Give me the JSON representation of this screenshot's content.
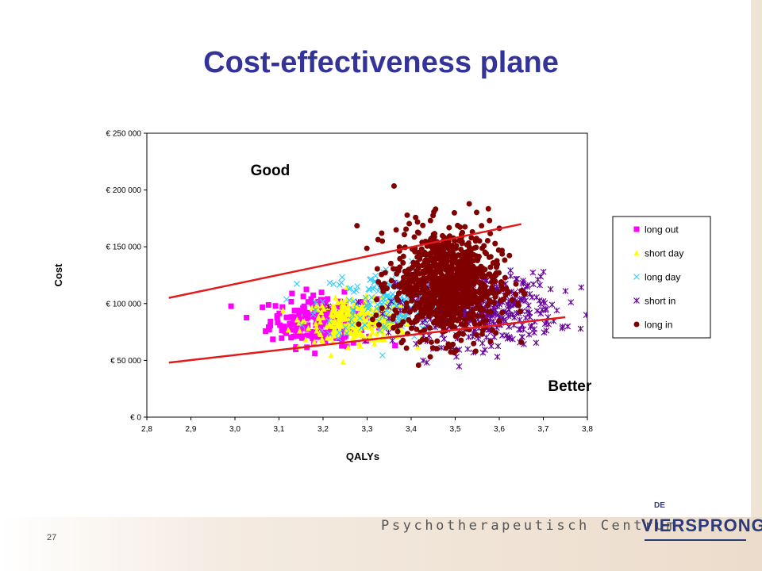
{
  "slide": {
    "title": "Cost-effectiveness plane",
    "page_number": "27",
    "tagline": "Psychotherapeutisch Centrum",
    "logo_small": "DE",
    "logo_name": "VIERSPRONG"
  },
  "chart_data": {
    "type": "scatter",
    "xlabel": "QALYs",
    "ylabel": "Cost",
    "xlim": [
      2.8,
      3.8
    ],
    "ylim": [
      0,
      250000
    ],
    "x_ticks": [
      "2,8",
      "2,9",
      "3,0",
      "3,1",
      "3,2",
      "3,3",
      "3,4",
      "3,5",
      "3,6",
      "3,7",
      "3,8"
    ],
    "y_ticks": [
      "€ 0",
      "€ 50 000",
      "€ 100 000",
      "€ 150 000",
      "€ 200 000",
      "€ 250 000"
    ],
    "grid": false,
    "legend_position": "right",
    "series": [
      {
        "name": "long out",
        "marker": "square",
        "color": "#ff00ff",
        "cx": 3.2,
        "cy": 85000,
        "sx": 0.06,
        "sy": 11000,
        "n": 260
      },
      {
        "name": "short day",
        "marker": "triangle",
        "color": "#ffff00",
        "cx": 3.28,
        "cy": 85000,
        "sx": 0.06,
        "sy": 9000,
        "n": 320
      },
      {
        "name": "long day",
        "marker": "x",
        "color": "#33ccff",
        "cx": 3.35,
        "cy": 100000,
        "sx": 0.08,
        "sy": 16000,
        "n": 180
      },
      {
        "name": "short in",
        "marker": "asterisk",
        "color": "#660099",
        "cx": 3.55,
        "cy": 95000,
        "sx": 0.09,
        "sy": 16000,
        "n": 420
      },
      {
        "name": "long in",
        "marker": "circle",
        "color": "#800000",
        "cx": 3.48,
        "cy": 118000,
        "sx": 0.06,
        "sy": 24000,
        "n": 950
      }
    ],
    "lines": [
      {
        "color": "#e31a1c",
        "x": [
          2.85,
          3.65
        ],
        "y": [
          105000,
          170000
        ]
      },
      {
        "color": "#e31a1c",
        "x": [
          2.85,
          3.75
        ],
        "y": [
          48000,
          88000
        ]
      }
    ],
    "annotations": [
      {
        "text": "Good",
        "x": 3.08,
        "y": 213000
      },
      {
        "text": "Better",
        "x": 3.76,
        "y": 23000
      }
    ]
  }
}
